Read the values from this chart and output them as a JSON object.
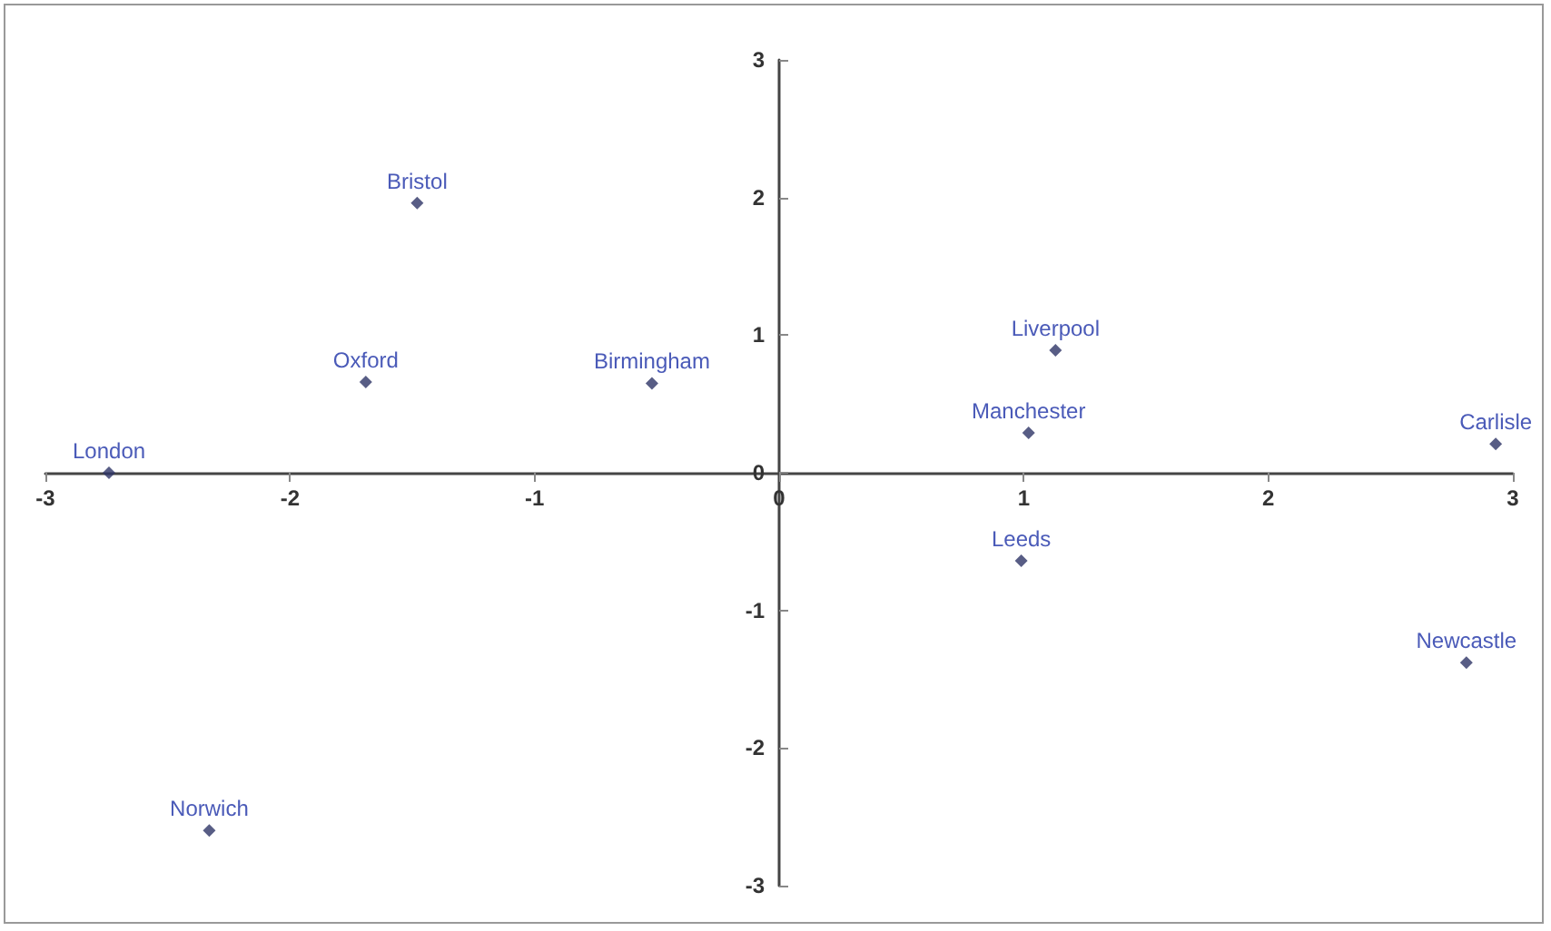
{
  "chart_data": {
    "type": "scatter",
    "x": [
      -2.74,
      -1.48,
      -1.69,
      -0.52,
      1.13,
      1.02,
      2.93,
      0.99,
      2.81,
      -2.33
    ],
    "values": [
      0,
      1.96,
      0.66,
      0.65,
      0.89,
      0.29,
      0.21,
      -0.64,
      -1.38,
      -2.6
    ],
    "color": "#2e3566",
    "marker": "diamond",
    "xlim": [
      -3,
      3
    ],
    "xticks": [
      -3,
      -2,
      -1,
      0,
      1,
      2,
      3
    ],
    "ylim": [
      -3,
      3
    ],
    "yticks": [
      -3,
      -2,
      -1,
      0,
      1,
      2,
      3
    ],
    "annotations": [
      {
        "text": "London",
        "x": -2.74,
        "y": 0
      },
      {
        "text": "Bristol",
        "x": -1.48,
        "y": 1.96
      },
      {
        "text": "Oxford",
        "x": -1.69,
        "y": 0.66
      },
      {
        "text": "Birmingham",
        "x": -0.52,
        "y": 0.65
      },
      {
        "text": "Liverpool",
        "x": 1.13,
        "y": 0.89
      },
      {
        "text": "Manchester",
        "x": 1.02,
        "y": 0.29
      },
      {
        "text": "Carlisle",
        "x": 2.93,
        "y": 0.21
      },
      {
        "text": "Leeds",
        "x": 0.99,
        "y": -0.64
      },
      {
        "text": "Newcastle",
        "x": 2.81,
        "y": -1.38
      },
      {
        "text": "Norwich",
        "x": -2.33,
        "y": -2.6
      }
    ]
  }
}
